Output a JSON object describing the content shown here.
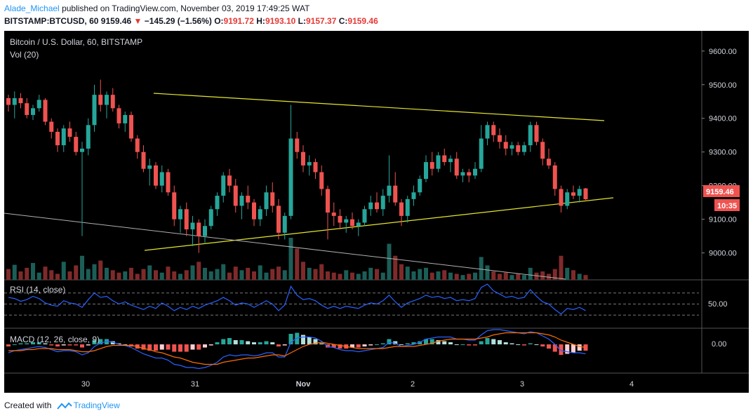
{
  "header": {
    "author": "Alade_Michael",
    "published_text": "published on TradingView.com, November 03, 2019 17:49:25 WAT",
    "symbol": "BITSTAMP:BTCUSD, 60",
    "last": "9159.46",
    "change_arrow": "▼",
    "change": "−145.29 (−1.56%)",
    "o_label": "O:",
    "o_value": "9191.72",
    "h_label": "H:",
    "h_value": "9193.10",
    "l_label": "L:",
    "l_value": "9157.37",
    "c_label": "C:",
    "c_value": "9159.46"
  },
  "panel": {
    "title": "Bitcoin / U.S. Dollar, 60, BITSTAMP",
    "vol_label": "Vol (20)",
    "rsi_label": "RSI (14, close)",
    "macd_label": "MACD (12, 26, close, 9)",
    "price_tag": "9159.46",
    "countdown_tag": "10:35",
    "rsi_axis_label": "50.00",
    "macd_axis_label": "0.00"
  },
  "footer": {
    "created_with": "Created with",
    "brand": "TradingView"
  },
  "colors": {
    "up": "#26a69a",
    "down": "#ef5350",
    "trendline": "#e6e62e",
    "gray_line": "#b0b0b0",
    "rsi": "#2962ff",
    "macd": "#2962ff",
    "signal": "#ff6d00",
    "background": "#000000"
  },
  "chart_data": {
    "type": "candlestick",
    "price_axis": {
      "ticks": [
        "9600.00",
        "9500.00",
        "9400.00",
        "9300.00",
        "9200.00",
        "9100.00",
        "9000.00"
      ],
      "ylim": [
        8920,
        9660
      ]
    },
    "time_axis": {
      "ticks": [
        "30",
        "31",
        "Nov",
        "2",
        "3",
        "4"
      ]
    },
    "candles": [
      [
        9460,
        9470,
        9420,
        9440
      ],
      [
        9440,
        9480,
        9400,
        9460
      ],
      [
        9460,
        9475,
        9430,
        9445
      ],
      [
        9445,
        9460,
        9400,
        9410
      ],
      [
        9410,
        9440,
        9395,
        9430
      ],
      [
        9430,
        9470,
        9420,
        9455
      ],
      [
        9455,
        9460,
        9380,
        9390
      ],
      [
        9390,
        9400,
        9340,
        9360
      ],
      [
        9360,
        9370,
        9300,
        9320
      ],
      [
        9320,
        9380,
        9300,
        9370
      ],
      [
        9370,
        9390,
        9330,
        9345
      ],
      [
        9345,
        9360,
        9290,
        9300
      ],
      [
        9300,
        9330,
        9050,
        9310
      ],
      [
        9310,
        9400,
        9290,
        9380
      ],
      [
        9380,
        9500,
        9360,
        9470
      ],
      [
        9470,
        9515,
        9420,
        9440
      ],
      [
        9440,
        9480,
        9400,
        9470
      ],
      [
        9470,
        9490,
        9420,
        9430
      ],
      [
        9430,
        9440,
        9370,
        9385
      ],
      [
        9385,
        9420,
        9360,
        9410
      ],
      [
        9410,
        9420,
        9330,
        9340
      ],
      [
        9340,
        9350,
        9280,
        9300
      ],
      [
        9300,
        9320,
        9240,
        9250
      ],
      [
        9250,
        9280,
        9200,
        9260
      ],
      [
        9260,
        9270,
        9190,
        9200
      ],
      [
        9200,
        9260,
        9180,
        9240
      ],
      [
        9240,
        9250,
        9170,
        9180
      ],
      [
        9180,
        9200,
        9080,
        9100
      ],
      [
        9100,
        9140,
        9060,
        9130
      ],
      [
        9130,
        9150,
        9050,
        9070
      ],
      [
        9070,
        9110,
        9020,
        9090
      ],
      [
        9090,
        9100,
        9000,
        9050
      ],
      [
        9050,
        9100,
        9030,
        9080
      ],
      [
        9080,
        9140,
        9070,
        9130
      ],
      [
        9130,
        9180,
        9110,
        9170
      ],
      [
        9170,
        9240,
        9150,
        9230
      ],
      [
        9230,
        9250,
        9180,
        9200
      ],
      [
        9200,
        9220,
        9120,
        9140
      ],
      [
        9140,
        9180,
        9100,
        9170
      ],
      [
        9170,
        9200,
        9130,
        9150
      ],
      [
        9150,
        9160,
        9080,
        9100
      ],
      [
        9100,
        9140,
        9080,
        9130
      ],
      [
        9130,
        9200,
        9110,
        9180
      ],
      [
        9180,
        9210,
        9120,
        9140
      ],
      [
        9140,
        9160,
        9040,
        9060
      ],
      [
        9060,
        9120,
        9040,
        9110
      ],
      [
        9110,
        9440,
        9100,
        9340
      ],
      [
        9340,
        9360,
        9280,
        9300
      ],
      [
        9300,
        9320,
        9240,
        9260
      ],
      [
        9260,
        9290,
        9230,
        9270
      ],
      [
        9270,
        9280,
        9220,
        9240
      ],
      [
        9240,
        9260,
        9170,
        9190
      ],
      [
        9190,
        9200,
        9040,
        9120
      ],
      [
        9120,
        9150,
        9080,
        9110
      ],
      [
        9110,
        9130,
        9070,
        9090
      ],
      [
        9090,
        9110,
        9060,
        9100
      ],
      [
        9100,
        9120,
        9070,
        9080
      ],
      [
        9080,
        9100,
        9050,
        9090
      ],
      [
        9090,
        9140,
        9080,
        9130
      ],
      [
        9130,
        9170,
        9110,
        9150
      ],
      [
        9150,
        9180,
        9120,
        9130
      ],
      [
        9130,
        9190,
        9110,
        9170
      ],
      [
        9170,
        9290,
        9150,
        9200
      ],
      [
        9200,
        9240,
        9140,
        9150
      ],
      [
        9150,
        9160,
        9080,
        9110
      ],
      [
        9110,
        9170,
        9090,
        9160
      ],
      [
        9160,
        9200,
        9140,
        9180
      ],
      [
        9180,
        9230,
        9170,
        9220
      ],
      [
        9220,
        9290,
        9210,
        9270
      ],
      [
        9270,
        9300,
        9230,
        9250
      ],
      [
        9250,
        9300,
        9240,
        9290
      ],
      [
        9290,
        9310,
        9260,
        9270
      ],
      [
        9270,
        9290,
        9240,
        9280
      ],
      [
        9280,
        9300,
        9220,
        9230
      ],
      [
        9230,
        9250,
        9210,
        9240
      ],
      [
        9240,
        9250,
        9210,
        9230
      ],
      [
        9230,
        9270,
        9220,
        9250
      ],
      [
        9250,
        9380,
        9240,
        9340
      ],
      [
        9340,
        9390,
        9320,
        9380
      ],
      [
        9380,
        9390,
        9330,
        9350
      ],
      [
        9350,
        9370,
        9310,
        9330
      ],
      [
        9330,
        9350,
        9290,
        9310
      ],
      [
        9310,
        9330,
        9290,
        9320
      ],
      [
        9320,
        9330,
        9290,
        9300
      ],
      [
        9300,
        9330,
        9290,
        9320
      ],
      [
        9320,
        9390,
        9300,
        9380
      ],
      [
        9380,
        9390,
        9320,
        9330
      ],
      [
        9330,
        9340,
        9260,
        9280
      ],
      [
        9280,
        9310,
        9250,
        9260
      ],
      [
        9260,
        9270,
        9170,
        9190
      ],
      [
        9190,
        9200,
        9120,
        9140
      ],
      [
        9140,
        9190,
        9130,
        9180
      ],
      [
        9180,
        9200,
        9160,
        9170
      ],
      [
        9170,
        9200,
        9150,
        9190
      ],
      [
        9191.72,
        9193.1,
        9157.37,
        9159.46
      ]
    ],
    "volume": [
      18,
      25,
      14,
      20,
      28,
      12,
      22,
      16,
      10,
      30,
      14,
      24,
      40,
      18,
      26,
      32,
      20,
      16,
      12,
      14,
      20,
      10,
      18,
      24,
      16,
      12,
      22,
      14,
      10,
      16,
      24,
      30,
      20,
      14,
      18,
      26,
      12,
      22,
      16,
      20,
      14,
      24,
      12,
      18,
      22,
      16,
      70,
      52,
      30,
      20,
      18,
      26,
      14,
      12,
      10,
      16,
      12,
      10,
      14,
      20,
      18,
      12,
      60,
      40,
      26,
      22,
      14,
      18,
      20,
      12,
      14,
      16,
      12,
      10,
      8,
      10,
      12,
      38,
      24,
      14,
      10,
      12,
      8,
      10,
      8,
      20,
      12,
      14,
      10,
      18,
      40,
      20,
      16,
      10,
      8
    ],
    "rsi": [
      62,
      60,
      55,
      58,
      64,
      60,
      52,
      48,
      46,
      56,
      52,
      50,
      44,
      58,
      70,
      62,
      64,
      56,
      50,
      54,
      48,
      44,
      40,
      46,
      42,
      52,
      46,
      38,
      44,
      40,
      46,
      42,
      48,
      52,
      56,
      62,
      56,
      48,
      52,
      50,
      44,
      50,
      56,
      50,
      38,
      48,
      82,
      66,
      58,
      60,
      56,
      48,
      42,
      46,
      42,
      46,
      44,
      42,
      48,
      52,
      50,
      56,
      66,
      54,
      44,
      52,
      56,
      60,
      66,
      62,
      64,
      60,
      62,
      56,
      58,
      56,
      60,
      80,
      86,
      74,
      68,
      62,
      64,
      60,
      62,
      76,
      64,
      54,
      50,
      40,
      32,
      42,
      40,
      44,
      38
    ],
    "macd": [
      -8,
      -6,
      -5,
      -4,
      -3,
      -2,
      -3,
      -5,
      -7,
      -6,
      -6,
      -7,
      -10,
      -8,
      -2,
      1,
      3,
      2,
      0,
      -1,
      -3,
      -6,
      -9,
      -11,
      -13,
      -13,
      -15,
      -19,
      -20,
      -22,
      -22,
      -23,
      -22,
      -20,
      -17,
      -12,
      -10,
      -11,
      -10,
      -10,
      -11,
      -10,
      -8,
      -8,
      -12,
      -12,
      2,
      6,
      7,
      7,
      6,
      3,
      -2,
      -3,
      -5,
      -6,
      -6,
      -7,
      -6,
      -5,
      -4,
      -3,
      2,
      1,
      -2,
      -1,
      0,
      2,
      5,
      6,
      7,
      7,
      7,
      5,
      5,
      4,
      4,
      9,
      13,
      14,
      14,
      13,
      12,
      11,
      10,
      12,
      11,
      8,
      5,
      0,
      -6,
      -7,
      -8,
      -8,
      -9
    ],
    "signal": [
      -6,
      -6,
      -6,
      -5,
      -5,
      -4,
      -4,
      -4,
      -5,
      -5,
      -5,
      -6,
      -7,
      -7,
      -6,
      -4,
      -2,
      -1,
      -1,
      -1,
      -1,
      -2,
      -4,
      -5,
      -7,
      -8,
      -10,
      -12,
      -13,
      -15,
      -17,
      -18,
      -19,
      -19,
      -19,
      -17,
      -16,
      -15,
      -14,
      -13,
      -13,
      -12,
      -11,
      -10,
      -10,
      -11,
      -8,
      -5,
      -2,
      0,
      1,
      2,
      1,
      0,
      -1,
      -2,
      -3,
      -4,
      -4,
      -4,
      -4,
      -4,
      -3,
      -2,
      -2,
      -2,
      -2,
      -1,
      0,
      1,
      3,
      4,
      5,
      5,
      5,
      5,
      5,
      6,
      7,
      9,
      10,
      11,
      11,
      11,
      11,
      11,
      11,
      10,
      9,
      7,
      4,
      2,
      0,
      -2,
      -3
    ]
  }
}
